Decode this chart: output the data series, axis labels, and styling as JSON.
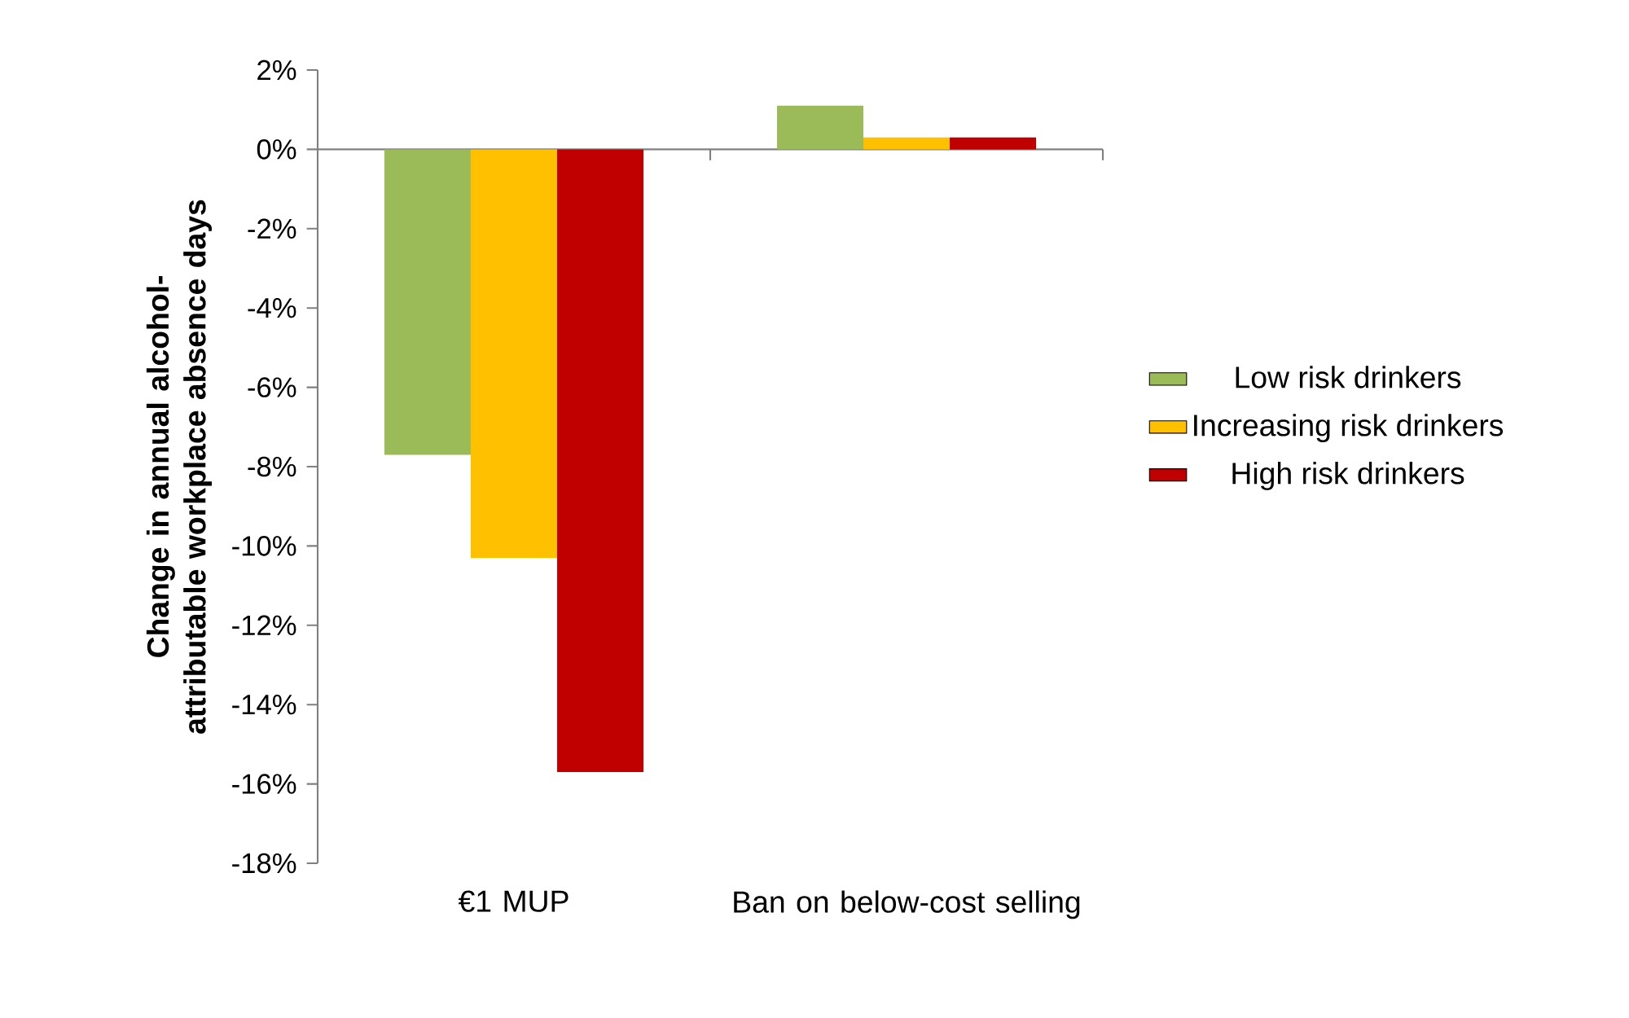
{
  "chart_data": {
    "type": "bar",
    "ylabel": "Change in annual alcohol-attributable workplace absence days",
    "categories": [
      "€1 MUP",
      "Ban on below-cost selling"
    ],
    "series": [
      {
        "name": "Low risk drinkers",
        "color": "#9bbb59",
        "values": [
          -7.7,
          1.1
        ]
      },
      {
        "name": "Increasing risk drinkers",
        "color": "#ffc000",
        "values": [
          -10.3,
          0.3
        ]
      },
      {
        "name": "High risk drinkers",
        "color": "#c00000",
        "values": [
          -15.7,
          0.3
        ]
      }
    ],
    "ylim": [
      -18,
      2
    ],
    "yticks": [
      {
        "value": 2,
        "label": "2%"
      },
      {
        "value": 0,
        "label": "0%"
      },
      {
        "value": -2,
        "label": "-2%"
      },
      {
        "value": -4,
        "label": "-4%"
      },
      {
        "value": -6,
        "label": "-6%"
      },
      {
        "value": -8,
        "label": "-8%"
      },
      {
        "value": -10,
        "label": "-10%"
      },
      {
        "value": -12,
        "label": "-12%"
      },
      {
        "value": -14,
        "label": "-14%"
      },
      {
        "value": -16,
        "label": "-16%"
      },
      {
        "value": -18,
        "label": "-18%"
      }
    ],
    "legend": "right"
  }
}
